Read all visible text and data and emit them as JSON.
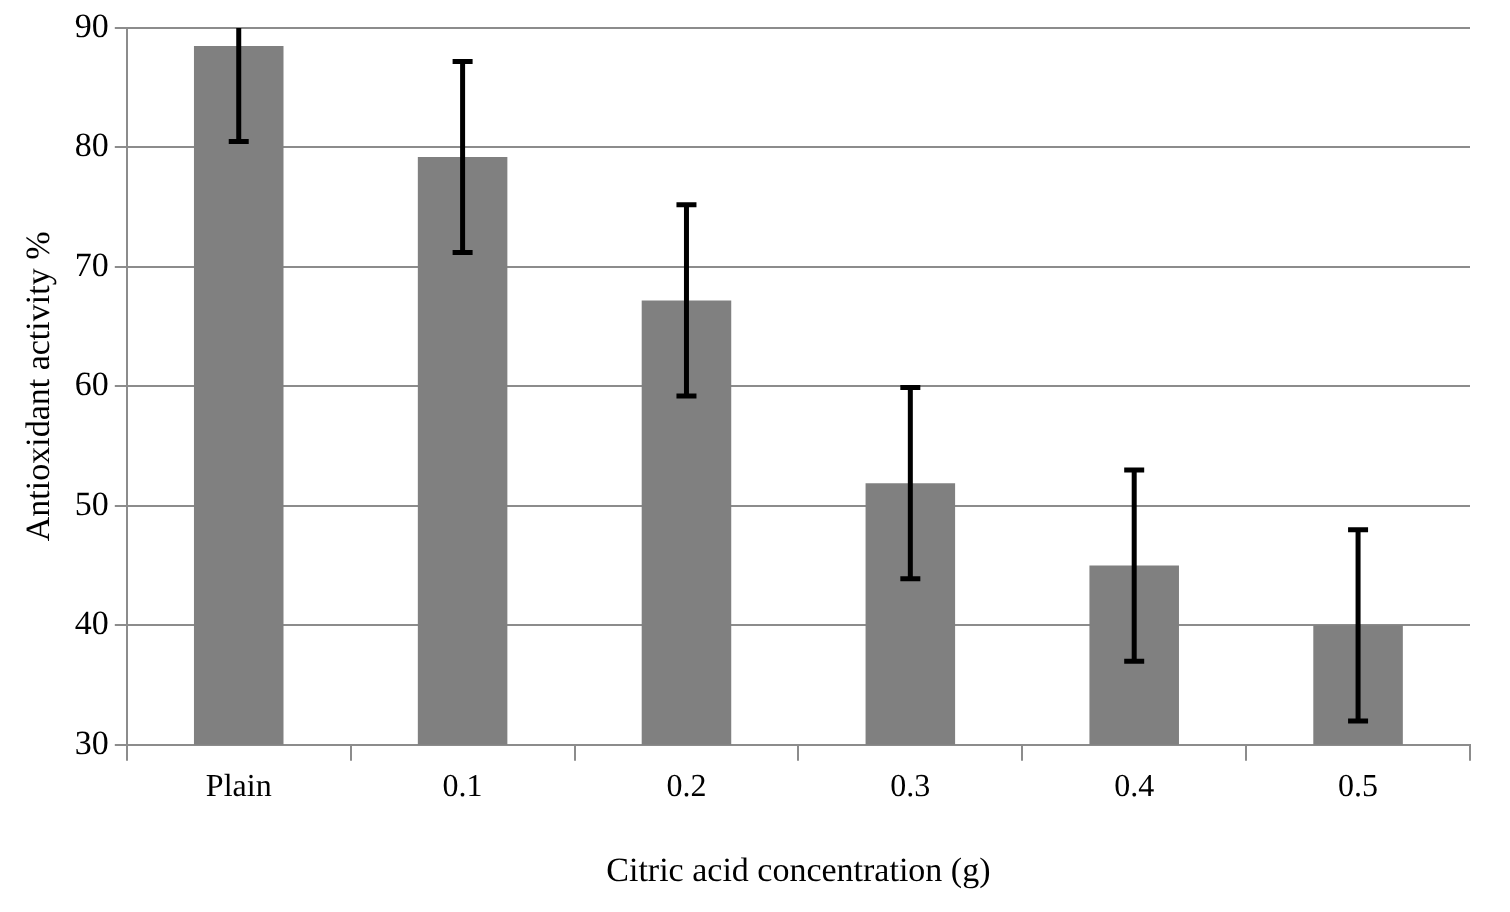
{
  "chart_data": {
    "type": "bar",
    "xlabel": "Citric acid concentration (g)",
    "ylabel": "Antioxidant activity %",
    "categories": [
      "Plain",
      "0.1",
      "0.2",
      "0.3",
      "0.4",
      "0.5"
    ],
    "values": [
      88.5,
      79.2,
      67.2,
      51.9,
      45,
      40
    ],
    "errors": [
      [
        80.5,
        90
      ],
      8,
      8,
      8,
      8,
      8
    ],
    "color": "#808080",
    "ylim": [
      30,
      90
    ],
    "yticks": [
      30,
      40,
      50,
      60,
      70,
      80,
      90
    ],
    "grid": "y",
    "legend": false
  }
}
